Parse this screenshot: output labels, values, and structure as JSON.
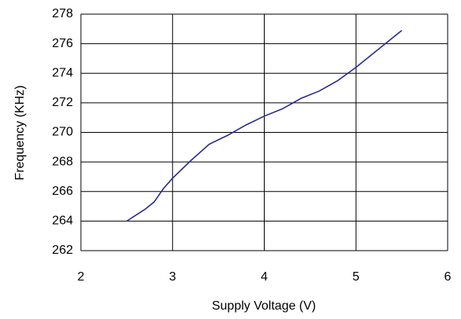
{
  "chart_data": {
    "type": "line",
    "x_label": "Supply Voltage (V)",
    "y_label": "Frequency (KHz)",
    "xlim": [
      2,
      6
    ],
    "xticks": [
      2,
      3,
      4,
      5,
      6
    ],
    "ylim": [
      262,
      278
    ],
    "yticks": [
      262,
      264,
      266,
      268,
      270,
      272,
      274,
      276,
      278
    ],
    "grid": true,
    "series": [
      {
        "color": "#2a2a90",
        "x": [
          2.5,
          2.6,
          2.7,
          2.8,
          2.9,
          3.0,
          3.2,
          3.4,
          3.6,
          3.8,
          4.0,
          4.2,
          4.4,
          4.6,
          4.8,
          5.0,
          5.2,
          5.4,
          5.5
        ],
        "values": [
          264,
          264.4,
          264.8,
          265.3,
          266.2,
          266.9,
          268.1,
          269.2,
          269.8,
          270.5,
          271.1,
          271.6,
          272.3,
          272.8,
          273.5,
          274.4,
          275.4,
          276.4,
          276.9
        ]
      }
    ]
  }
}
